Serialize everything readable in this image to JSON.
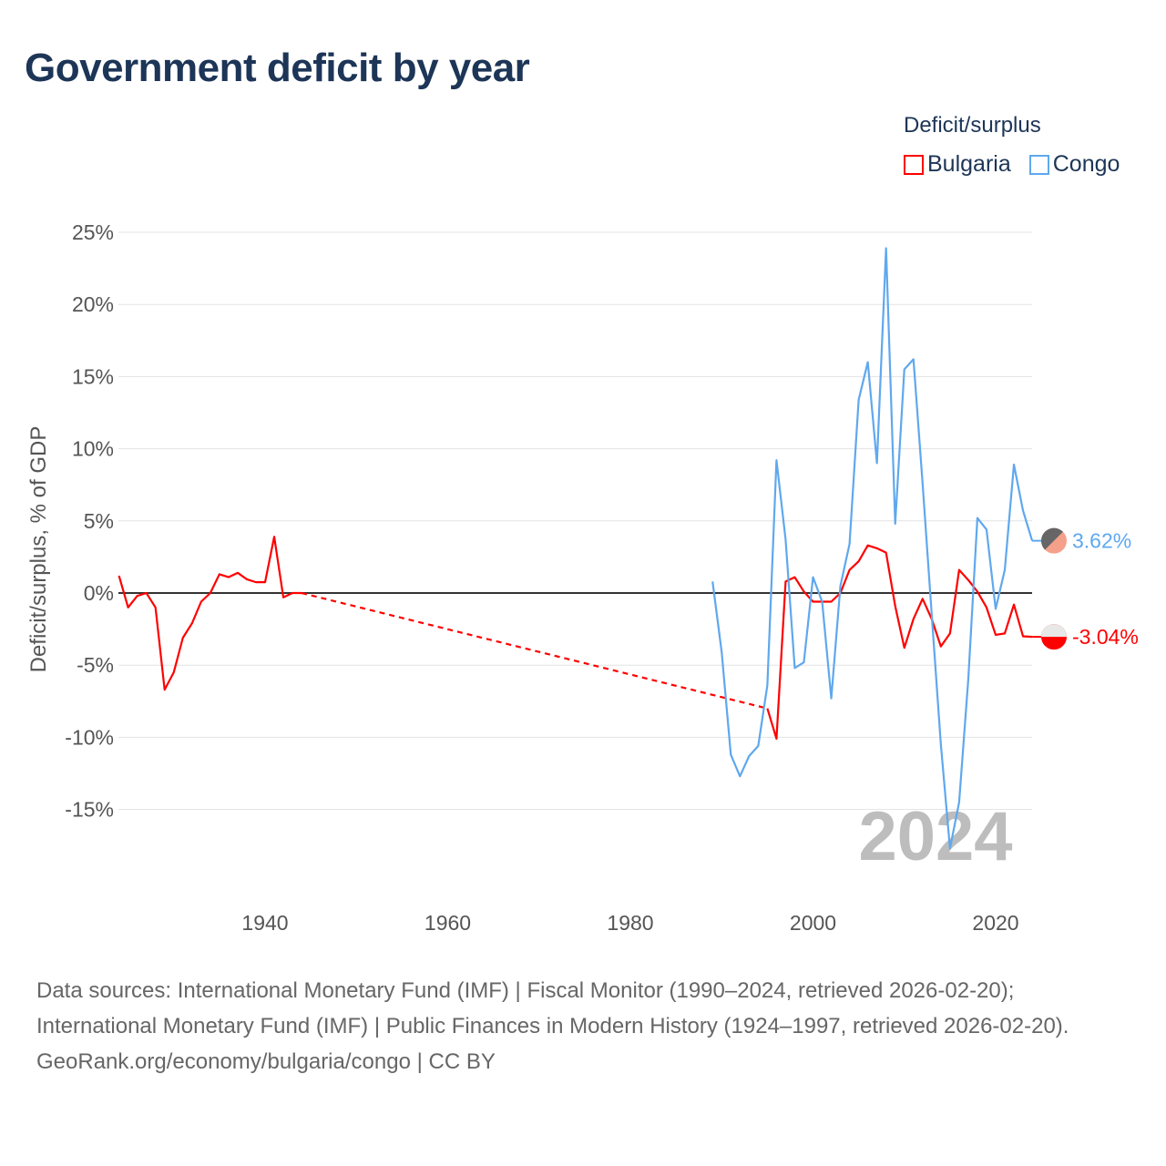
{
  "title": "Government deficit by year",
  "legend": {
    "title": "Deficit/surplus",
    "items": [
      {
        "name": "Bulgaria",
        "color": "#ff0000"
      },
      {
        "name": "Congo",
        "color": "#5fa8ee"
      }
    ]
  },
  "year_watermark": "2024",
  "sources": "Data sources: International Monetary Fund (IMF) | Fiscal Monitor (1990–2024, retrieved 2026-02-20); International Monetary Fund (IMF) | Public Finances in Modern History (1924–1997, retrieved 2026-02-20).",
  "credit": "GeoRank.org/economy/bulgaria/congo | CC BY",
  "chart_data": {
    "type": "line",
    "title": "Government deficit by year",
    "xlabel": "",
    "ylabel": "Deficit/surplus, % of GDP",
    "xlim": [
      1924,
      2024
    ],
    "ylim": [
      -18,
      25
    ],
    "xticks": [
      1940,
      1960,
      1980,
      2000,
      2020
    ],
    "yticks": [
      -15,
      -10,
      -5,
      0,
      5,
      10,
      15,
      20,
      25
    ],
    "ytick_labels": [
      "-15%",
      "-10%",
      "-5%",
      "0%",
      "5%",
      "10%",
      "15%",
      "20%",
      "25%"
    ],
    "grid": true,
    "legend_position": "top-right",
    "series": [
      {
        "name": "Bulgaria",
        "color": "#ff0000",
        "end_label": "-3.04%",
        "gap": [
          1944,
          1995
        ],
        "x": [
          1924,
          1925,
          1926,
          1927,
          1928,
          1929,
          1930,
          1931,
          1932,
          1933,
          1934,
          1935,
          1936,
          1937,
          1938,
          1939,
          1940,
          1941,
          1942,
          1943,
          1944,
          1995,
          1996,
          1997,
          1998,
          1999,
          2000,
          2001,
          2002,
          2003,
          2004,
          2005,
          2006,
          2007,
          2008,
          2009,
          2010,
          2011,
          2012,
          2013,
          2014,
          2015,
          2016,
          2017,
          2018,
          2019,
          2020,
          2021,
          2022,
          2023,
          2024
        ],
        "y": [
          1.2,
          -1.0,
          -0.2,
          0,
          -1.0,
          -6.7,
          -5.5,
          -3.1,
          -2.1,
          -0.6,
          0,
          1.3,
          1.1,
          1.4,
          0.95,
          0.75,
          0.75,
          3.9,
          -0.3,
          0,
          0,
          -8.0,
          -10.1,
          0.8,
          1.1,
          0.1,
          -0.6,
          -0.6,
          -0.6,
          0,
          1.6,
          2.2,
          3.3,
          3.1,
          2.8,
          -0.9,
          -3.8,
          -1.8,
          -0.4,
          -1.8,
          -3.7,
          -2.8,
          1.6,
          0.9,
          0.1,
          -1.0,
          -2.9,
          -2.8,
          -0.8,
          -3.0,
          -3.04
        ]
      },
      {
        "name": "Congo",
        "color": "#5fa8ee",
        "end_label": "3.62%",
        "x": [
          1989,
          1990,
          1991,
          1992,
          1993,
          1994,
          1995,
          1996,
          1997,
          1998,
          1999,
          2000,
          2001,
          2002,
          2003,
          2004,
          2005,
          2006,
          2007,
          2008,
          2009,
          2010,
          2011,
          2012,
          2013,
          2014,
          2015,
          2016,
          2017,
          2018,
          2019,
          2020,
          2021,
          2022,
          2023,
          2024
        ],
        "y": [
          0.8,
          -4.1,
          -11.2,
          -12.7,
          -11.3,
          -10.6,
          -6.4,
          9.2,
          3.7,
          -5.2,
          -4.8,
          1.1,
          -0.6,
          -7.3,
          0.5,
          3.4,
          13.4,
          16.0,
          9.0,
          23.9,
          4.8,
          15.5,
          16.2,
          7.6,
          -1.5,
          -10.5,
          -17.7,
          -14.5,
          -6.0,
          5.2,
          4.4,
          -1.1,
          1.6,
          8.9,
          5.7,
          3.62
        ]
      }
    ]
  }
}
